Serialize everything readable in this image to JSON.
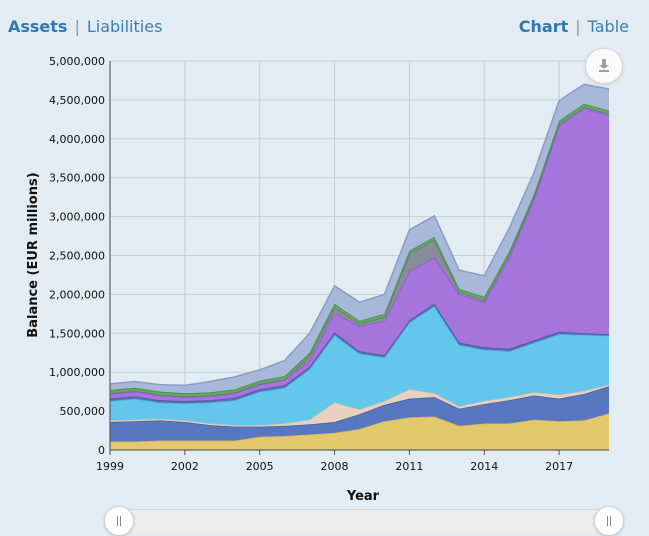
{
  "tabs": {
    "left": [
      {
        "label": "Assets",
        "active": true
      },
      {
        "label": "Liabilities",
        "active": false
      }
    ],
    "right": [
      {
        "label": "Chart",
        "active": true
      },
      {
        "label": "Table",
        "active": false
      }
    ],
    "separator": "|"
  },
  "download_icon": "download-icon",
  "chart_data": {
    "type": "area",
    "stacked": true,
    "xlabel": "Year",
    "ylabel": "Balance (EUR millions)",
    "ylim": [
      0,
      5000000
    ],
    "xlim": [
      1999,
      2019
    ],
    "x_ticks": [
      "1999",
      "2002",
      "2005",
      "2008",
      "2011",
      "2014",
      "2017"
    ],
    "y_ticks": [
      "0",
      "500,000",
      "1,000,000",
      "1,500,000",
      "2,000,000",
      "2,500,000",
      "3,000,000",
      "3,500,000",
      "4,000,000",
      "4,500,000",
      "5,000,000"
    ],
    "grid": true,
    "x": [
      1999,
      2000,
      2001,
      2002,
      2003,
      2004,
      2005,
      2006,
      2007,
      2008,
      2009,
      2010,
      2011,
      2012,
      2013,
      2014,
      2015,
      2016,
      2017,
      2018,
      2019
    ],
    "series": [
      {
        "color": "#e3c86e",
        "line": "#d6b75c",
        "values": [
          110000,
          110000,
          120000,
          120000,
          120000,
          120000,
          170000,
          180000,
          200000,
          220000,
          270000,
          370000,
          420000,
          430000,
          310000,
          340000,
          340000,
          390000,
          370000,
          380000,
          470000
        ]
      },
      {
        "color": "#5777c0",
        "line": "#3e5ea6",
        "values": [
          250000,
          260000,
          260000,
          240000,
          200000,
          180000,
          130000,
          130000,
          130000,
          140000,
          190000,
          210000,
          240000,
          250000,
          220000,
          250000,
          300000,
          310000,
          290000,
          340000,
          350000
        ]
      },
      {
        "color": "#e8d2bf",
        "line": "#d9c0aa",
        "values": [
          20000,
          20000,
          20000,
          20000,
          20000,
          20000,
          20000,
          30000,
          60000,
          250000,
          60000,
          50000,
          120000,
          50000,
          30000,
          40000,
          40000,
          40000,
          50000,
          40000,
          20000
        ]
      },
      {
        "color": "#63c7eb",
        "line": "#42b0dd",
        "values": [
          250000,
          270000,
          210000,
          220000,
          270000,
          320000,
          430000,
          460000,
          650000,
          870000,
          720000,
          560000,
          860000,
          1120000,
          790000,
          660000,
          590000,
          640000,
          780000,
          720000,
          630000
        ]
      },
      {
        "color": "#5b6fb5",
        "line": "#47589c",
        "values": [
          30000,
          30000,
          30000,
          30000,
          30000,
          30000,
          30000,
          30000,
          30000,
          30000,
          30000,
          30000,
          30000,
          30000,
          30000,
          30000,
          30000,
          30000,
          30000,
          20000,
          20000
        ]
      },
      {
        "color": "#a574dd",
        "line": "#8f5ccf",
        "values": [
          60000,
          60000,
          60000,
          50000,
          50000,
          60000,
          60000,
          70000,
          80000,
          250000,
          320000,
          440000,
          630000,
          600000,
          620000,
          580000,
          1170000,
          1820000,
          2650000,
          2890000,
          2810000
        ]
      },
      {
        "color": "#888e99",
        "line": "#6f7580",
        "values": [
          10000,
          10000,
          10000,
          10000,
          10000,
          10000,
          10000,
          10000,
          60000,
          80000,
          30000,
          50000,
          220000,
          220000,
          30000,
          30000,
          40000,
          20000,
          20000,
          20000,
          20000
        ]
      },
      {
        "color": "#5eaa5e",
        "line": "#3f8f3f",
        "values": [
          40000,
          40000,
          40000,
          40000,
          40000,
          40000,
          40000,
          40000,
          40000,
          40000,
          40000,
          40000,
          40000,
          40000,
          40000,
          40000,
          40000,
          40000,
          40000,
          40000,
          40000
        ]
      },
      {
        "color": "#a8b8d8",
        "line": "#8b9dc6",
        "values": [
          80000,
          80000,
          90000,
          100000,
          140000,
          160000,
          140000,
          200000,
          250000,
          230000,
          240000,
          250000,
          270000,
          270000,
          240000,
          270000,
          300000,
          280000,
          260000,
          250000,
          280000
        ]
      }
    ]
  }
}
